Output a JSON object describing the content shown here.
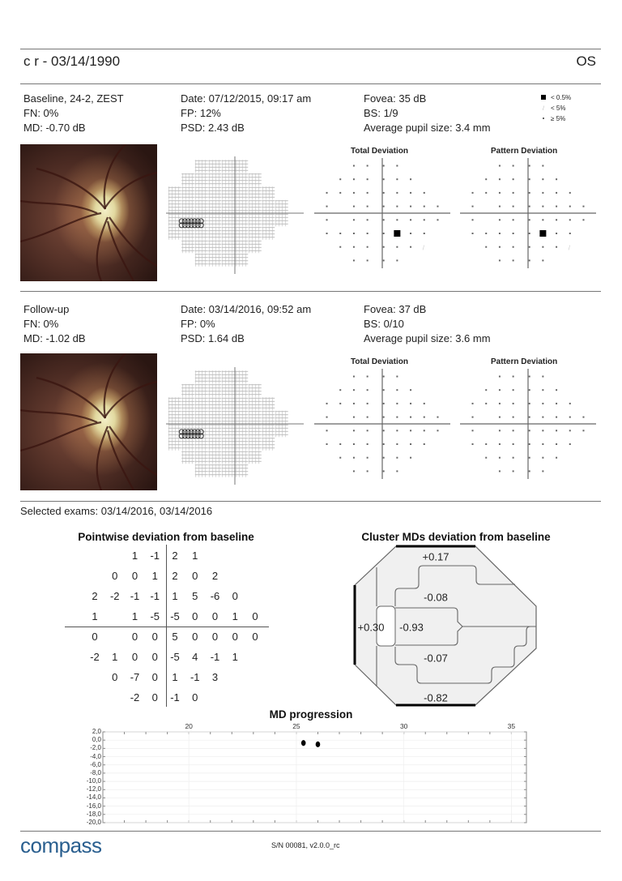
{
  "header": {
    "patient": "c r - 03/14/1990",
    "eye": "OS"
  },
  "legend": [
    {
      "symbol": "black-square",
      "label": "< 0.5%"
    },
    {
      "symbol": "light-hatch",
      "label": "< 5%"
    },
    {
      "symbol": "dot",
      "label": "≥ 5%"
    }
  ],
  "exams": [
    {
      "type": "Baseline, 24-2, ZEST",
      "fn": "FN: 0%",
      "md": "MD: -0.70 dB",
      "date": "Date: 07/12/2015, 09:17 am",
      "fp": "FP: 12%",
      "psd": "PSD: 2.43 dB",
      "fovea": "Fovea: 35 dB",
      "bs": "BS: 1/9",
      "pupil": "Average pupil size: 3.4 mm",
      "total_deviation_title": "Total Deviation",
      "pattern_deviation_title": "Pattern Deviation",
      "total_deviation": [
        "..dddd...",
        ".dddddd..",
        "dddddddd.",
        "d.ddddddd",
        "d.ddddddd",
        "dddddbdd.",
        ".ddddddl..",
        "..dddd..."
      ],
      "pattern_deviation": [
        "..dddd...",
        ".dddddd..",
        "dddddddd.",
        "d.ddddddd",
        "d.ddddddd",
        "dddddbdd.",
        ".ddddddl..",
        "..dddd..."
      ]
    },
    {
      "type": "Follow-up",
      "fn": "FN: 0%",
      "md": "MD: -1.02 dB",
      "date": "Date: 03/14/2016, 09:52 am",
      "fp": "FP: 0%",
      "psd": "PSD: 1.64 dB",
      "fovea": "Fovea: 37 dB",
      "bs": "BS: 0/10",
      "pupil": "Average pupil size: 3.6 mm",
      "total_deviation_title": "Total Deviation",
      "pattern_deviation_title": "Pattern Deviation",
      "total_deviation": [
        "..dddd...",
        ".dddddd..",
        "dddddddd.",
        "d.ddddddd",
        "d.ddddddd",
        "dddddddd.",
        ".dddddd..",
        "..dddd..."
      ],
      "pattern_deviation": [
        "..dddd...",
        ".dddddd..",
        "dddddddd.",
        "d.ddddddd",
        "d.ddddddd",
        "dddddddd.",
        ".dddddd..",
        "..dddd..."
      ]
    }
  ],
  "selected_exams": "Selected exams: 03/14/2016, 03/14/2016",
  "pointwise": {
    "title": "Pointwise deviation from baseline",
    "rows": [
      [
        null,
        null,
        "1",
        "-1",
        "2",
        "1",
        null,
        null,
        null
      ],
      [
        null,
        "0",
        "0",
        "1",
        "2",
        "0",
        "2",
        null,
        null
      ],
      [
        "2",
        "-2",
        "-1",
        "-1",
        "1",
        "5",
        "-6",
        "0",
        null
      ],
      [
        "1",
        null,
        "1",
        "-5",
        "-5",
        "0",
        "0",
        "1",
        "0"
      ],
      [
        "0",
        null,
        "0",
        "0",
        "5",
        "0",
        "0",
        "0",
        "0"
      ],
      [
        "-2",
        "1",
        "0",
        "0",
        "-5",
        "4",
        "-1",
        "1",
        null
      ],
      [
        null,
        "0",
        "-7",
        "0",
        "1",
        "-1",
        "3",
        null,
        null
      ],
      [
        null,
        null,
        "-2",
        "0",
        "-1",
        "0",
        null,
        null,
        null
      ]
    ]
  },
  "cluster": {
    "title": "Cluster MDs deviation from baseline",
    "values": {
      "superior_peripheral": "+0.17",
      "superior_paracentral": "-0.08",
      "nasal": "+0.30",
      "central": "-0.93",
      "inferior_paracentral": "-0.07",
      "inferior_peripheral": "-0.82"
    }
  },
  "chart_data": {
    "type": "scatter",
    "title": "MD progression",
    "xlabel": "",
    "ylabel": "",
    "xlim": [
      16,
      35.7
    ],
    "ylim": [
      -20,
      2
    ],
    "x_ticks": [
      "20",
      "25",
      "30",
      "35"
    ],
    "x_tick_values": [
      20,
      25,
      30,
      35
    ],
    "y_ticks": [
      "2,0",
      "0,0",
      "-2,0",
      "-4,0",
      "-6,0",
      "-8,0",
      "-10,0",
      "-12,0",
      "-14,0",
      "-16,0",
      "-18,0",
      "-20,0"
    ],
    "y_tick_values": [
      2,
      0,
      -2,
      -4,
      -6,
      -8,
      -10,
      -12,
      -14,
      -16,
      -18,
      -20
    ],
    "grid": true,
    "points": [
      {
        "x": 25.33,
        "y": -0.7
      },
      {
        "x": 26.0,
        "y": -1.02
      }
    ]
  },
  "footer": {
    "logo": "compass",
    "serial": "S/N 00081, v2.0.0_rc",
    "brand_color": "#2a5f8f"
  }
}
